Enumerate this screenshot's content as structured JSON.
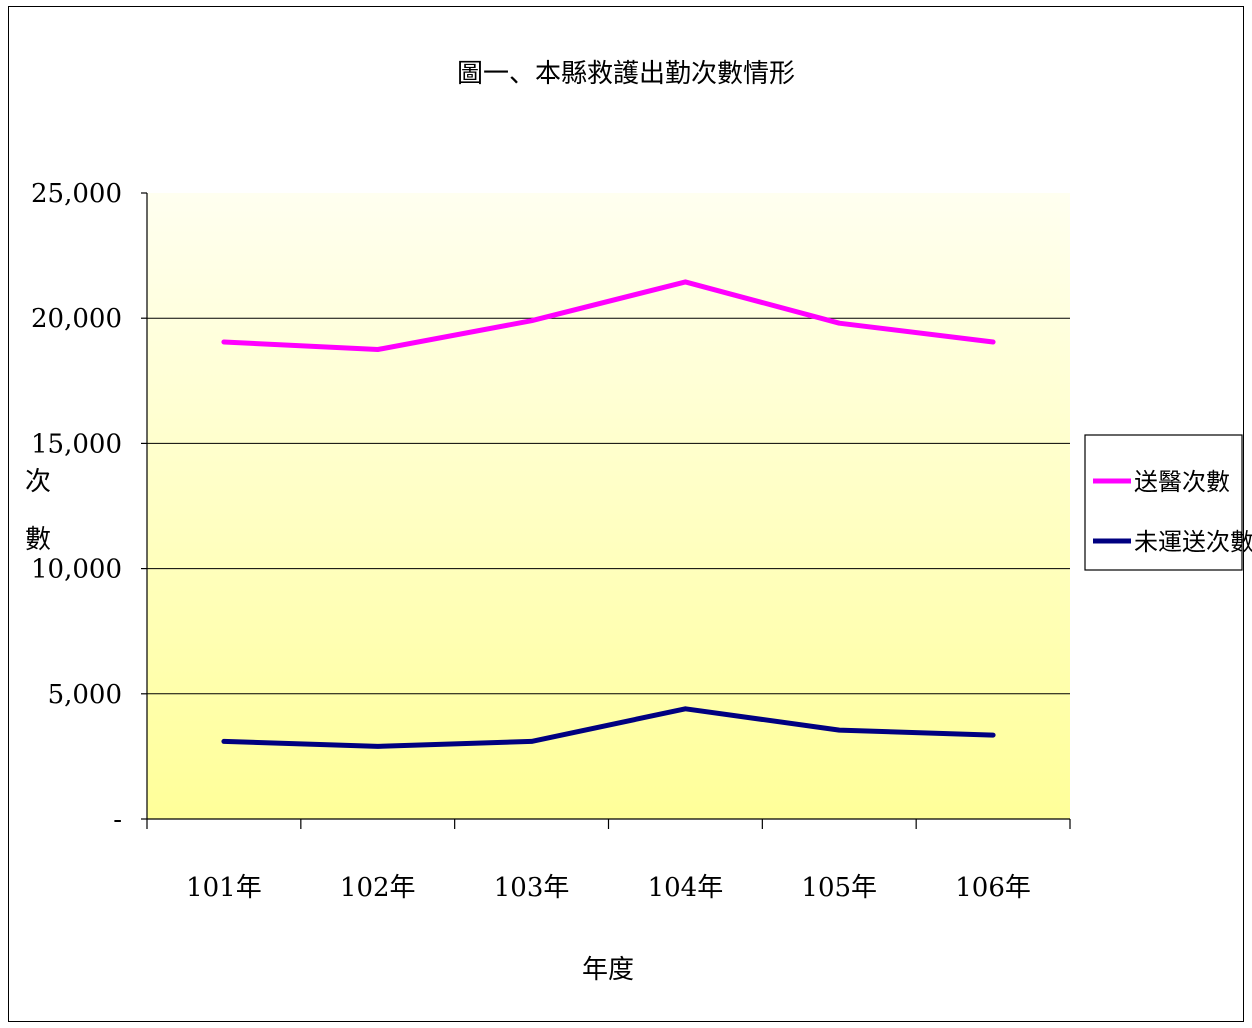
{
  "chart_data": {
    "type": "line",
    "title": "圖一、本縣救護出勤次數情形",
    "xlabel": "年度",
    "ylabel": "次數",
    "categories": [
      "101年",
      "102年",
      "103年",
      "104年",
      "105年",
      "106年"
    ],
    "ylim": [
      0,
      25000
    ],
    "yticks": [
      {
        "value": 0,
        "label": "-"
      },
      {
        "value": 5000,
        "label": "5,000"
      },
      {
        "value": 10000,
        "label": "10,000"
      },
      {
        "value": 15000,
        "label": "15,000"
      },
      {
        "value": 20000,
        "label": "20,000"
      },
      {
        "value": 25000,
        "label": "25,000"
      }
    ],
    "grid": true,
    "legend_position": "right",
    "series": [
      {
        "name": "送醫次數",
        "color": "#ff00ff",
        "values": [
          19050,
          18750,
          19900,
          21450,
          19800,
          19050
        ]
      },
      {
        "name": "未運送次數",
        "color": "#000080",
        "values": [
          3100,
          2900,
          3100,
          4400,
          3550,
          3350
        ]
      }
    ],
    "plot_background": {
      "top": "#fffff0",
      "bottom": "#ffff99"
    }
  }
}
